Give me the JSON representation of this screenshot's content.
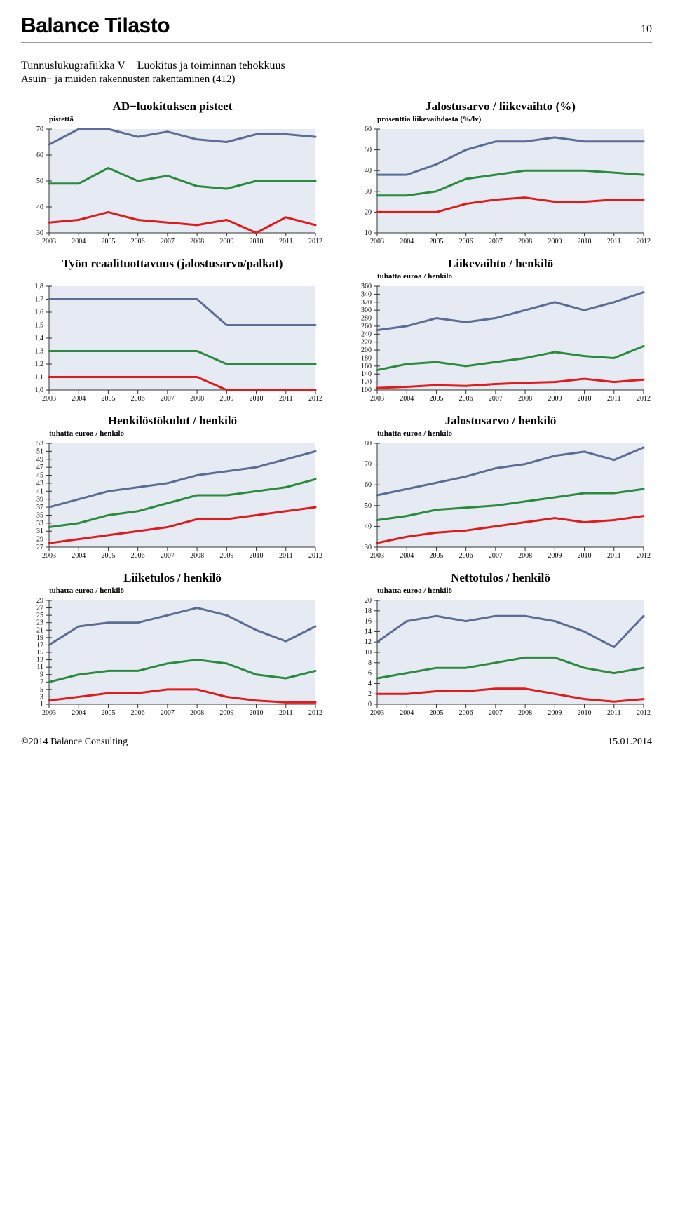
{
  "page": {
    "topTitle": "Balance Tilasto",
    "pageNumber": "10",
    "sectionTitle": "Tunnuslukugrafiikka V − Luokitus ja toiminnan tehokkuus",
    "sectionSub": "Asuin− ja muiden rakennusten rakentaminen (412)",
    "copyright": "©2014 Balance Consulting",
    "date": "15.01.2014"
  },
  "style": {
    "plotBg": "#e6eaf2",
    "axisColor": "#333333",
    "tickColor": "#333333",
    "xLabels": [
      "2003",
      "2004",
      "2005",
      "2006",
      "2007",
      "2008",
      "2009",
      "2010",
      "2011",
      "2012"
    ],
    "seriesColors": {
      "blue": "#5b6d95",
      "green": "#2a8a3d",
      "red": "#e11b1b"
    },
    "lineWidth": 3,
    "axisFont": 10,
    "tickLen": 5
  },
  "charts": [
    {
      "id": "ad",
      "title": "AD−luokituksen pisteet",
      "sub": "pistettä",
      "ymin": 30,
      "ymax": 70,
      "ystep": 10,
      "series": [
        {
          "color": "blue",
          "y": [
            64,
            70,
            70,
            67,
            69,
            66,
            65,
            68,
            68,
            67
          ]
        },
        {
          "color": "green",
          "y": [
            49,
            49,
            55,
            50,
            52,
            48,
            47,
            50,
            50,
            50
          ]
        },
        {
          "color": "red",
          "y": [
            34,
            35,
            38,
            35,
            34,
            33,
            35,
            30,
            36,
            33
          ]
        }
      ]
    },
    {
      "id": "jalost_pct",
      "title": "Jalostusarvo / liikevaihto (%)",
      "sub": "prosenttia liikevaihdosta (%/lv)",
      "ymin": 10,
      "ymax": 60,
      "ystep": 10,
      "series": [
        {
          "color": "blue",
          "y": [
            38,
            38,
            43,
            50,
            54,
            54,
            56,
            54,
            54,
            54
          ]
        },
        {
          "color": "green",
          "y": [
            28,
            28,
            30,
            36,
            38,
            40,
            40,
            40,
            39,
            38
          ]
        },
        {
          "color": "red",
          "y": [
            20,
            20,
            20,
            24,
            26,
            27,
            25,
            25,
            26,
            26
          ]
        }
      ]
    },
    {
      "id": "tyon",
      "title": "Työn reaalituottavuus (jalostusarvo/palkat)",
      "sub": "",
      "ymin": 1.0,
      "ymax": 1.8,
      "ystep": 0.1,
      "series": [
        {
          "color": "blue",
          "y": [
            1.7,
            1.7,
            1.7,
            1.7,
            1.7,
            1.7,
            1.5,
            1.5,
            1.5,
            1.5
          ]
        },
        {
          "color": "green",
          "y": [
            1.3,
            1.3,
            1.3,
            1.3,
            1.3,
            1.3,
            1.2,
            1.2,
            1.2,
            1.2
          ]
        },
        {
          "color": "red",
          "y": [
            1.1,
            1.1,
            1.1,
            1.1,
            1.1,
            1.1,
            1.0,
            1.0,
            1.0,
            1.0
          ]
        }
      ]
    },
    {
      "id": "liikevaihto",
      "title": "Liikevaihto / henkilö",
      "sub": "tuhatta euroa / henkilö",
      "ymin": 100,
      "ymax": 360,
      "ystep": 20,
      "series": [
        {
          "color": "blue",
          "y": [
            250,
            260,
            280,
            270,
            280,
            300,
            320,
            300,
            320,
            345
          ]
        },
        {
          "color": "green",
          "y": [
            150,
            165,
            170,
            160,
            170,
            180,
            195,
            185,
            180,
            210
          ]
        },
        {
          "color": "red",
          "y": [
            105,
            108,
            112,
            110,
            115,
            118,
            120,
            128,
            120,
            126
          ]
        }
      ]
    },
    {
      "id": "henkilo",
      "title": "Henkilöstökulut / henkilö",
      "sub": "tuhatta euroa / henkilö",
      "ymin": 27,
      "ymax": 53,
      "ystep": 2,
      "series": [
        {
          "color": "blue",
          "y": [
            37,
            39,
            41,
            42,
            43,
            45,
            46,
            47,
            49,
            51
          ]
        },
        {
          "color": "green",
          "y": [
            32,
            33,
            35,
            36,
            38,
            40,
            40,
            41,
            42,
            44
          ]
        },
        {
          "color": "red",
          "y": [
            28,
            29,
            30,
            31,
            32,
            34,
            34,
            35,
            36,
            37
          ]
        }
      ]
    },
    {
      "id": "jalost_henk",
      "title": "Jalostusarvo / henkilö",
      "sub": "tuhatta euroa / henkilö",
      "ymin": 30,
      "ymax": 80,
      "ystep": 10,
      "series": [
        {
          "color": "blue",
          "y": [
            55,
            58,
            61,
            64,
            68,
            70,
            74,
            76,
            72,
            78
          ]
        },
        {
          "color": "green",
          "y": [
            43,
            45,
            48,
            49,
            50,
            52,
            54,
            56,
            56,
            58
          ]
        },
        {
          "color": "red",
          "y": [
            32,
            35,
            37,
            38,
            40,
            42,
            44,
            42,
            43,
            45
          ]
        }
      ]
    },
    {
      "id": "liiketulos",
      "title": "Liiketulos / henkilö",
      "sub": "tuhatta euroa / henkilö",
      "ymin": 1,
      "ymax": 29,
      "ystep": 2,
      "series": [
        {
          "color": "blue",
          "y": [
            17,
            22,
            23,
            23,
            25,
            27,
            25,
            21,
            18,
            22
          ]
        },
        {
          "color": "green",
          "y": [
            7,
            9,
            10,
            10,
            12,
            13,
            12,
            9,
            8,
            10
          ]
        },
        {
          "color": "red",
          "y": [
            2,
            3,
            4,
            4,
            5,
            5,
            3,
            2,
            1.5,
            1.5
          ]
        }
      ]
    },
    {
      "id": "nettotulos",
      "title": "Nettotulos / henkilö",
      "sub": "tuhatta euroa / henkilö",
      "ymin": 0,
      "ymax": 20,
      "ystep": 2,
      "series": [
        {
          "color": "blue",
          "y": [
            12,
            16,
            17,
            16,
            17,
            17,
            16,
            14,
            11,
            17
          ]
        },
        {
          "color": "green",
          "y": [
            5,
            6,
            7,
            7,
            8,
            9,
            9,
            7,
            6,
            7
          ]
        },
        {
          "color": "red",
          "y": [
            2,
            2,
            2.5,
            2.5,
            3,
            3,
            2,
            1,
            0.5,
            1
          ]
        }
      ]
    }
  ]
}
